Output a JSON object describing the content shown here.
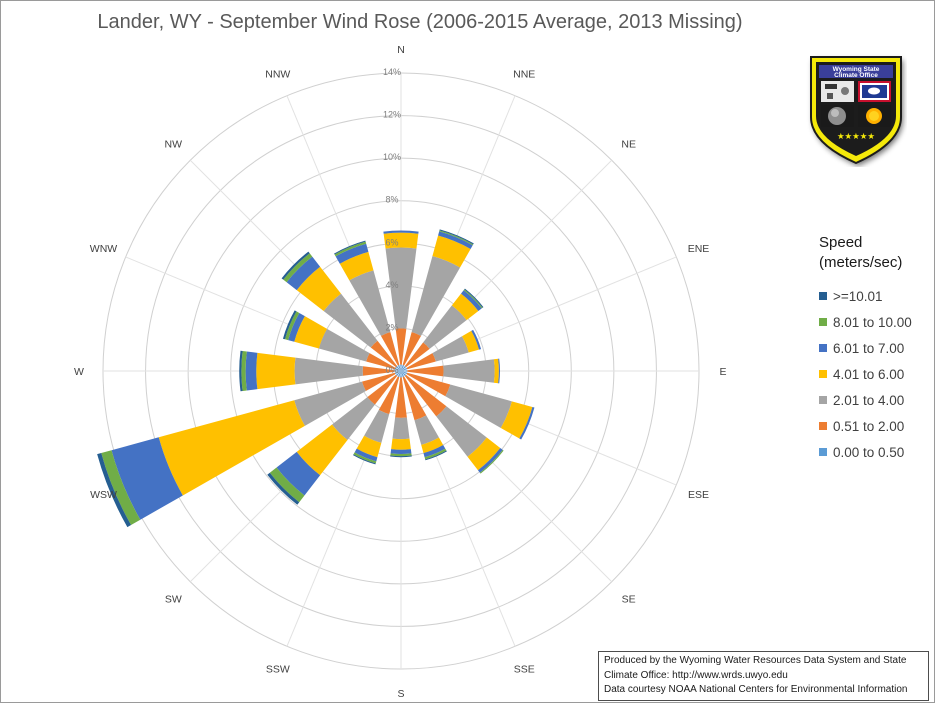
{
  "chart_data": {
    "type": "radar",
    "subtype": "stacked-wind-rose",
    "title": "Lander, WY - September Wind Rose (2006-2015 Average, 2013 Missing)",
    "directions": [
      "N",
      "NNE",
      "NE",
      "ENE",
      "E",
      "ESE",
      "SE",
      "SSE",
      "S",
      "SSW",
      "SW",
      "WSW",
      "W",
      "WNW",
      "NW",
      "NNW"
    ],
    "radial_axis": {
      "min": 0,
      "max": 14,
      "step": 2,
      "tick_labels": [
        "0%",
        "2%",
        "4%",
        "6%",
        "8%",
        "10%",
        "12%",
        "14%"
      ]
    },
    "grid": true,
    "legend_title": [
      "Speed",
      "(meters/sec)"
    ],
    "legend_position": "right",
    "series": [
      {
        "name": "0.00 to 0.50",
        "color": "#5b9bd5",
        "values": [
          0.3,
          0.3,
          0.3,
          0.3,
          0.3,
          0.3,
          0.3,
          0.3,
          0.3,
          0.3,
          0.3,
          0.3,
          0.3,
          0.3,
          0.3,
          0.3
        ]
      },
      {
        "name": "0.51 to 2.00",
        "color": "#ed7d31",
        "values": [
          1.7,
          1.6,
          1.4,
          1.4,
          1.7,
          2.1,
          2.4,
          2.1,
          1.9,
          1.8,
          1.7,
          1.6,
          1.5,
          1.4,
          1.5,
          1.6
        ]
      },
      {
        "name": "2.01 to 4.00",
        "color": "#a5a5a5",
        "values": [
          3.8,
          3.7,
          2.2,
          1.6,
          2.4,
          3.0,
          2.4,
          1.2,
          1.0,
          1.4,
          2.1,
          3.3,
          3.2,
          2.3,
          2.8,
          3.0
        ]
      },
      {
        "name": "4.01 to 6.00",
        "color": "#ffc000",
        "values": [
          0.7,
          1.0,
          0.7,
          0.5,
          0.2,
          1.0,
          0.8,
          0.4,
          0.5,
          0.7,
          2.1,
          6.6,
          1.8,
          1.2,
          1.6,
          0.9
        ]
      },
      {
        "name": "6.01 to 7.00",
        "color": "#4472c4",
        "values": [
          0.1,
          0.2,
          0.2,
          0.1,
          0.05,
          0.1,
          0.15,
          0.2,
          0.2,
          0.2,
          1.2,
          2.3,
          0.5,
          0.3,
          0.6,
          0.4
        ]
      },
      {
        "name": "8.01 to 10.00",
        "color": "#70ad47",
        "values": [
          0,
          0.05,
          0.05,
          0,
          0,
          0,
          0.05,
          0.1,
          0.1,
          0.1,
          0.4,
          0.5,
          0.2,
          0.15,
          0.2,
          0.1
        ]
      },
      {
        "name": ">=10.01",
        "color": "#255e91",
        "values": [
          0,
          0.05,
          0.05,
          0,
          0,
          0,
          0,
          0.05,
          0.05,
          0.05,
          0.15,
          0.2,
          0.1,
          0.1,
          0.1,
          0.05
        ]
      }
    ]
  },
  "legend": {
    "items": [
      {
        "label": ">=10.01",
        "color": "#255e91"
      },
      {
        "label": "8.01 to 10.00",
        "color": "#70ad47"
      },
      {
        "label": "6.01 to 7.00",
        "color": "#4472c4"
      },
      {
        "label": "4.01 to 6.00",
        "color": "#ffc000"
      },
      {
        "label": "2.01 to 4.00",
        "color": "#a5a5a5"
      },
      {
        "label": "0.51 to 2.00",
        "color": "#ed7d31"
      },
      {
        "label": "0.00 to 0.50",
        "color": "#5b9bd5"
      }
    ]
  },
  "logo": {
    "line1": "Wyoming State",
    "line2": "Climate Office",
    "stars": "★★★★★"
  },
  "credits": {
    "line1": "Produced by the Wyoming Water Resources Data System and State",
    "line2": "Climate Office: http://www.wrds.uwyo.edu",
    "line3": "Data courtesy NOAA National Centers for Environmental Information"
  }
}
